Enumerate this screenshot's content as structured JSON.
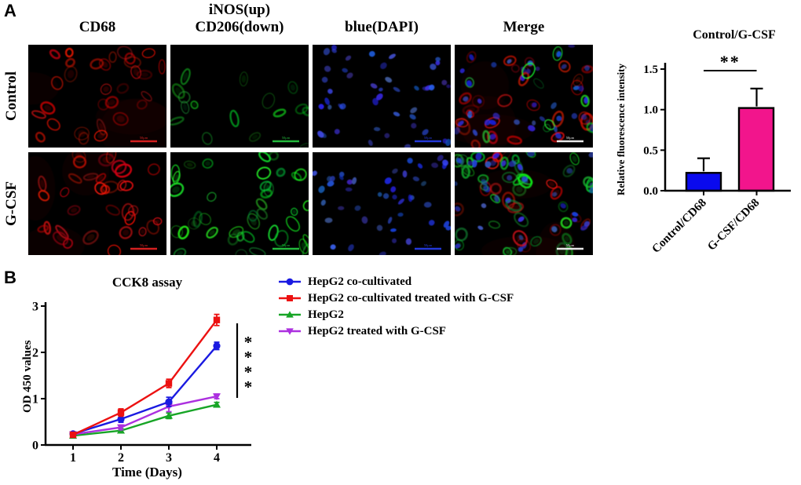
{
  "panel_a": {
    "label": "A",
    "column_headers": [
      "CD68",
      "iNOS(up)\nCD206(down)",
      "blue(DAPI)",
      "Merge"
    ],
    "row_labels": [
      "Control",
      "G-CSF"
    ],
    "scale_bar_label": "50μm",
    "scale_bar_colors": {
      "red": "#d42020",
      "green": "#23b93c",
      "blue": "#2338d8",
      "merge": "#e8e8e8"
    },
    "micrographs": [
      {
        "name": "control-cd68",
        "channel": "red",
        "cells": 30,
        "intensity": 0.9
      },
      {
        "name": "control-inos-cd206",
        "channel": "green",
        "cells": 16,
        "intensity": 0.68
      },
      {
        "name": "control-dapi",
        "channel": "blue",
        "cells": 46,
        "intensity": 0.9
      },
      {
        "name": "control-merge",
        "channel": "merge",
        "red_cells": 26,
        "green_cells": 9,
        "nuclei": 40
      },
      {
        "name": "gcsf-cd68",
        "channel": "red",
        "cells": 34,
        "intensity": 1.0
      },
      {
        "name": "gcsf-inos-cd206",
        "channel": "green",
        "cells": 40,
        "intensity": 1.0
      },
      {
        "name": "gcsf-dapi",
        "channel": "blue",
        "cells": 46,
        "intensity": 0.85
      },
      {
        "name": "gcsf-merge",
        "channel": "merge",
        "red_cells": 15,
        "green_cells": 36,
        "nuclei": 40
      }
    ]
  },
  "panel_b": {
    "label": "B"
  },
  "chart_data": [
    {
      "type": "bar",
      "title": "Control/G-CSF",
      "ylabel": "Relative fluorescence intensity",
      "categories": [
        "Control/CD68",
        "G-CSF/CD68"
      ],
      "values": [
        0.22,
        1.02
      ],
      "errors": [
        0.18,
        0.24
      ],
      "bar_colors": [
        "#0A0AEE",
        "#F2158C"
      ],
      "yticks": [
        0.0,
        0.5,
        1.0,
        1.5
      ],
      "ylim": [
        0,
        1.5
      ],
      "significance": "**",
      "grid": false
    },
    {
      "type": "line",
      "title": "CCK8 assay",
      "xlabel": "Time (Days)",
      "ylabel": "OD 450 values",
      "x": [
        1,
        2,
        3,
        4
      ],
      "yticks": [
        0,
        1,
        2,
        3
      ],
      "ylim": [
        0,
        3
      ],
      "series": [
        {
          "name": "HepG2 co-cultivated",
          "color": "#1A1AE1",
          "marker": "circle",
          "values": [
            0.24,
            0.56,
            0.93,
            2.14
          ],
          "errors": [
            0.04,
            0.07,
            0.1,
            0.08
          ]
        },
        {
          "name": "HepG2 co-cultivated treated with G-CSF",
          "color": "#EC1111",
          "marker": "square",
          "values": [
            0.22,
            0.7,
            1.33,
            2.7
          ],
          "errors": [
            0.04,
            0.08,
            0.09,
            0.12
          ]
        },
        {
          "name": "HepG2",
          "color": "#17A526",
          "marker": "triangle-up",
          "values": [
            0.2,
            0.31,
            0.63,
            0.87
          ],
          "errors": [
            0.03,
            0.04,
            0.06,
            0.05
          ]
        },
        {
          "name": "HepG2 treated with G-CSF",
          "color": "#AC30DF",
          "marker": "triangle-down",
          "values": [
            0.23,
            0.38,
            0.83,
            1.05
          ],
          "errors": [
            0.03,
            0.05,
            0.11,
            0.05
          ]
        }
      ],
      "significance": "****",
      "legend_position": "right",
      "grid": false
    }
  ]
}
